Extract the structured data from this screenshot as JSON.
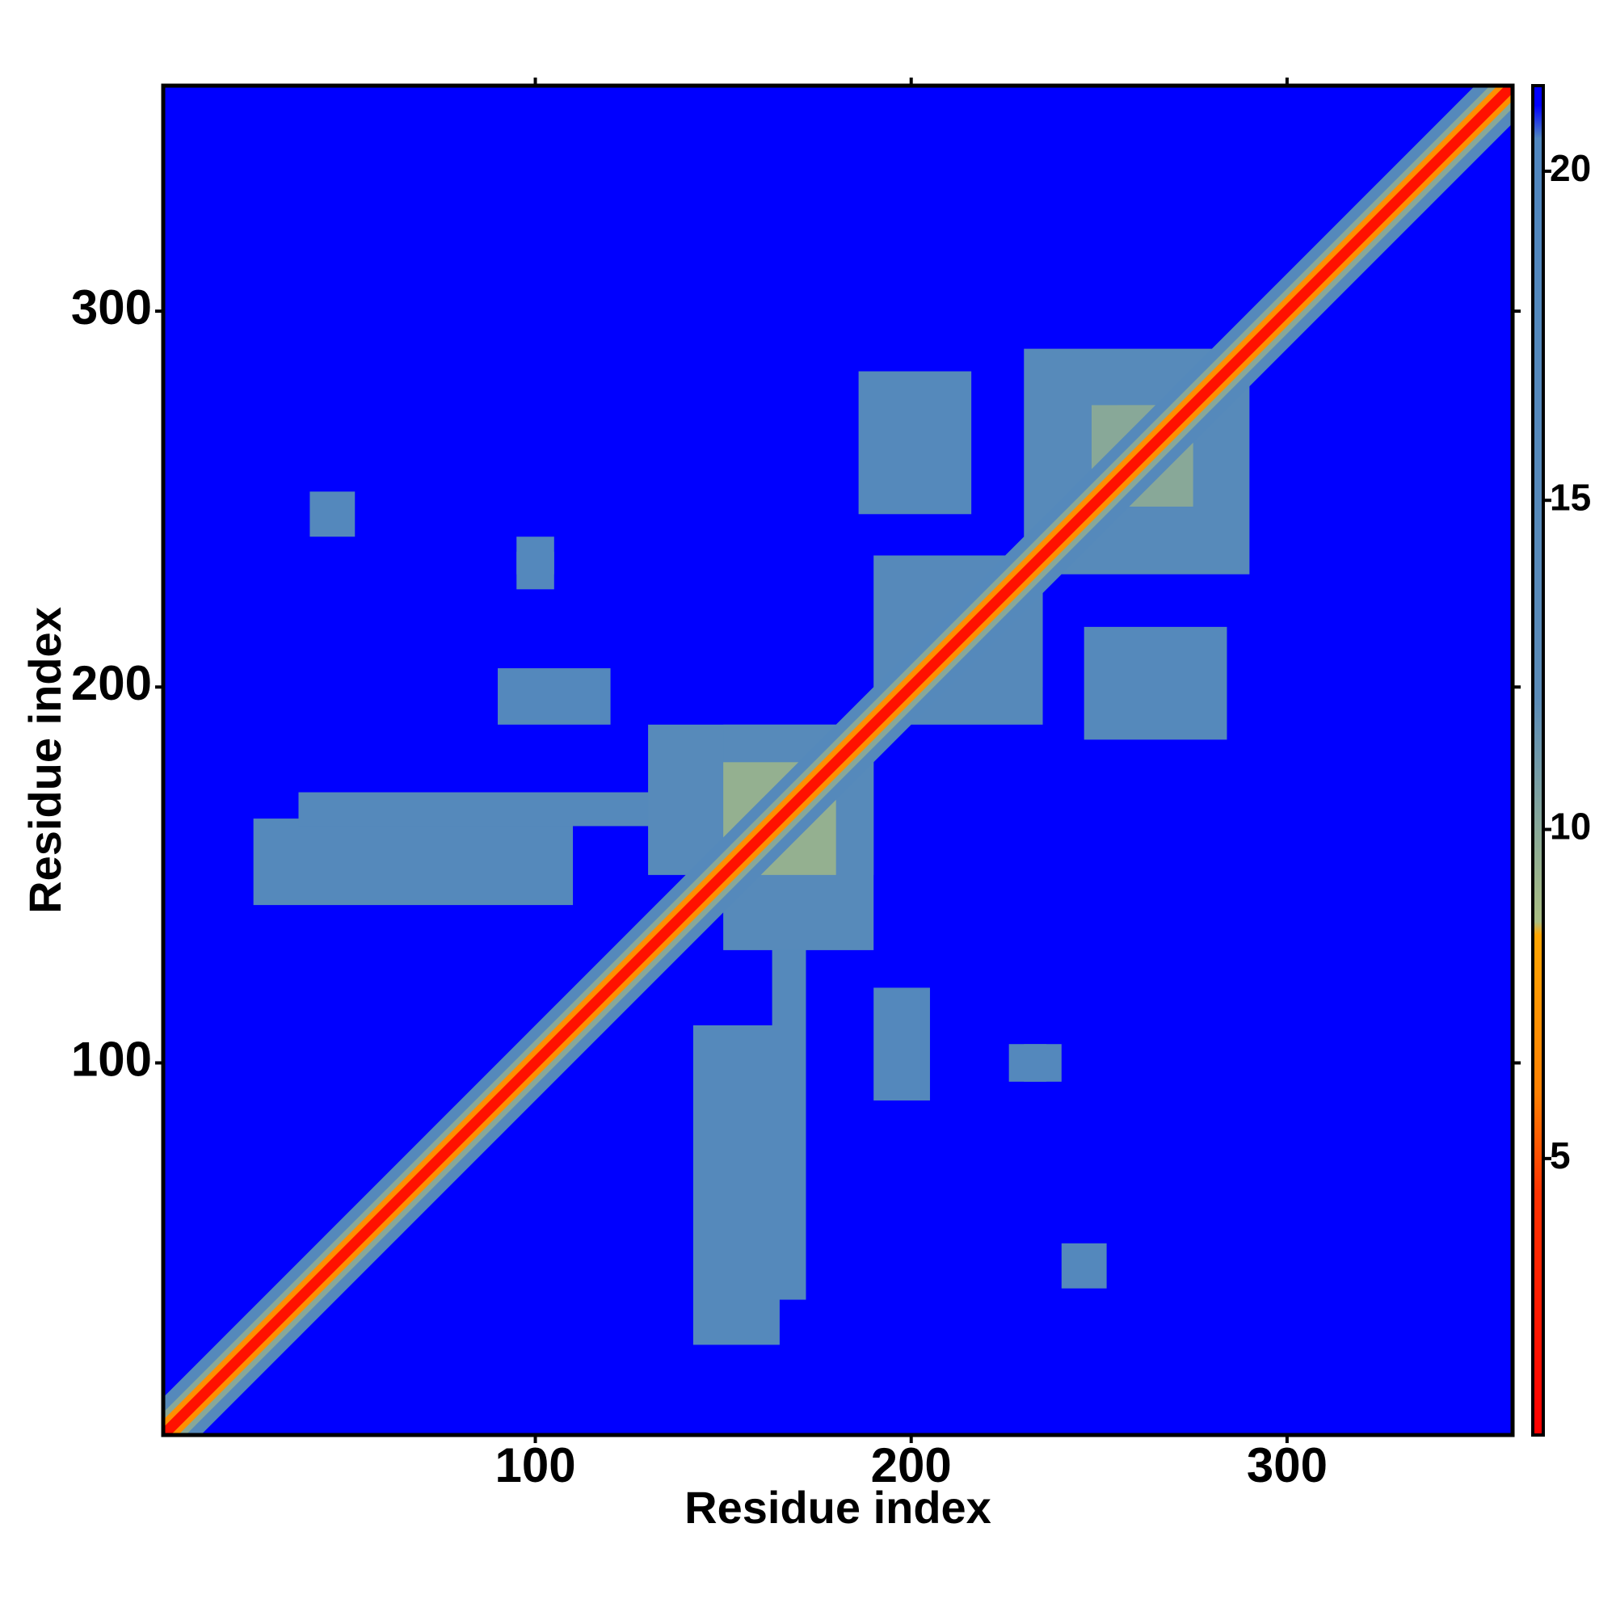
{
  "chart_data": {
    "type": "heatmap",
    "x_label": "Residue index",
    "y_label": "Residue index",
    "xlim": [
      1,
      360
    ],
    "ylim": [
      1,
      360
    ],
    "xticks": [
      100,
      200,
      300
    ],
    "yticks": [
      100,
      200,
      300
    ],
    "symmetric": true,
    "background_value": 21.3,
    "colorbar": {
      "lim": [
        0.8,
        21.3
      ],
      "ticks": [
        5,
        10,
        15,
        20
      ],
      "scale": [
        [
          0.8,
          "#ff0000"
        ],
        [
          4.5,
          "#ff3300"
        ],
        [
          6,
          "#ff8000"
        ],
        [
          8.4,
          "#ffa500"
        ],
        [
          8.6,
          "#a9bd82"
        ],
        [
          12,
          "#5a8bb8"
        ],
        [
          20.5,
          "#4f86bf"
        ],
        [
          21.0,
          "#0000ff"
        ]
      ]
    },
    "diagonal": [
      {
        "offset": 10,
        "value": 16
      },
      {
        "offset": 6,
        "value": 10
      },
      {
        "offset": 4,
        "value": 7
      },
      {
        "offset": 2,
        "value": 2
      }
    ],
    "cells": [
      {
        "x": [
          25,
          110
        ],
        "y": [
          142,
          165
        ],
        "value": 16
      },
      {
        "x": [
          37,
          133
        ],
        "y": [
          163,
          172
        ],
        "value": 16
      },
      {
        "x": [
          90,
          120
        ],
        "y": [
          190,
          205
        ],
        "value": 17
      },
      {
        "x": [
          130,
          190
        ],
        "y": [
          150,
          190
        ],
        "value": 14
      },
      {
        "x": [
          150,
          175
        ],
        "y": [
          160,
          180
        ],
        "value": 9.5
      },
      {
        "x": [
          186,
          216
        ],
        "y": [
          246,
          284
        ],
        "value": 16
      },
      {
        "x": [
          230,
          285
        ],
        "y": [
          240,
          290
        ],
        "value": 14
      },
      {
        "x": [
          248,
          275
        ],
        "y": [
          255,
          275
        ],
        "value": 10
      },
      {
        "x": [
          190,
          235
        ],
        "y": [
          200,
          235
        ],
        "value": 15
      },
      {
        "x": [
          95,
          105
        ],
        "y": [
          230,
          240
        ],
        "value": 17
      },
      {
        "x": [
          40,
          52
        ],
        "y": [
          240,
          252
        ],
        "value": 17
      },
      {
        "x": [
          226,
          236
        ],
        "y": [
          95,
          105
        ],
        "value": 17
      }
    ]
  }
}
